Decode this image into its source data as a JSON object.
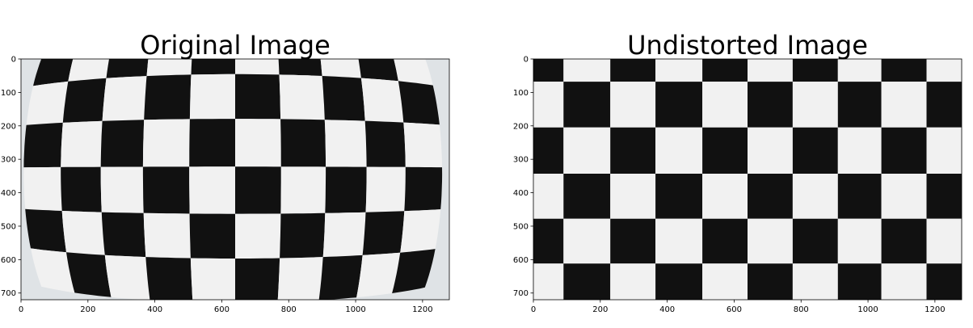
{
  "chart_data": [
    {
      "type": "image",
      "title": "Original Image",
      "distorted": true,
      "xlim": [
        0,
        1280
      ],
      "ylim": [
        720,
        0
      ],
      "xticks": [
        0,
        200,
        400,
        600,
        800,
        1000,
        1200
      ],
      "yticks": [
        0,
        100,
        200,
        300,
        400,
        500,
        600,
        700
      ]
    },
    {
      "type": "image",
      "title": "Undistorted Image",
      "distorted": false,
      "xlim": [
        0,
        1280
      ],
      "ylim": [
        720,
        0
      ],
      "xticks": [
        0,
        200,
        400,
        600,
        800,
        1000,
        1200
      ],
      "yticks": [
        0,
        100,
        200,
        300,
        400,
        500,
        600,
        700
      ]
    }
  ]
}
